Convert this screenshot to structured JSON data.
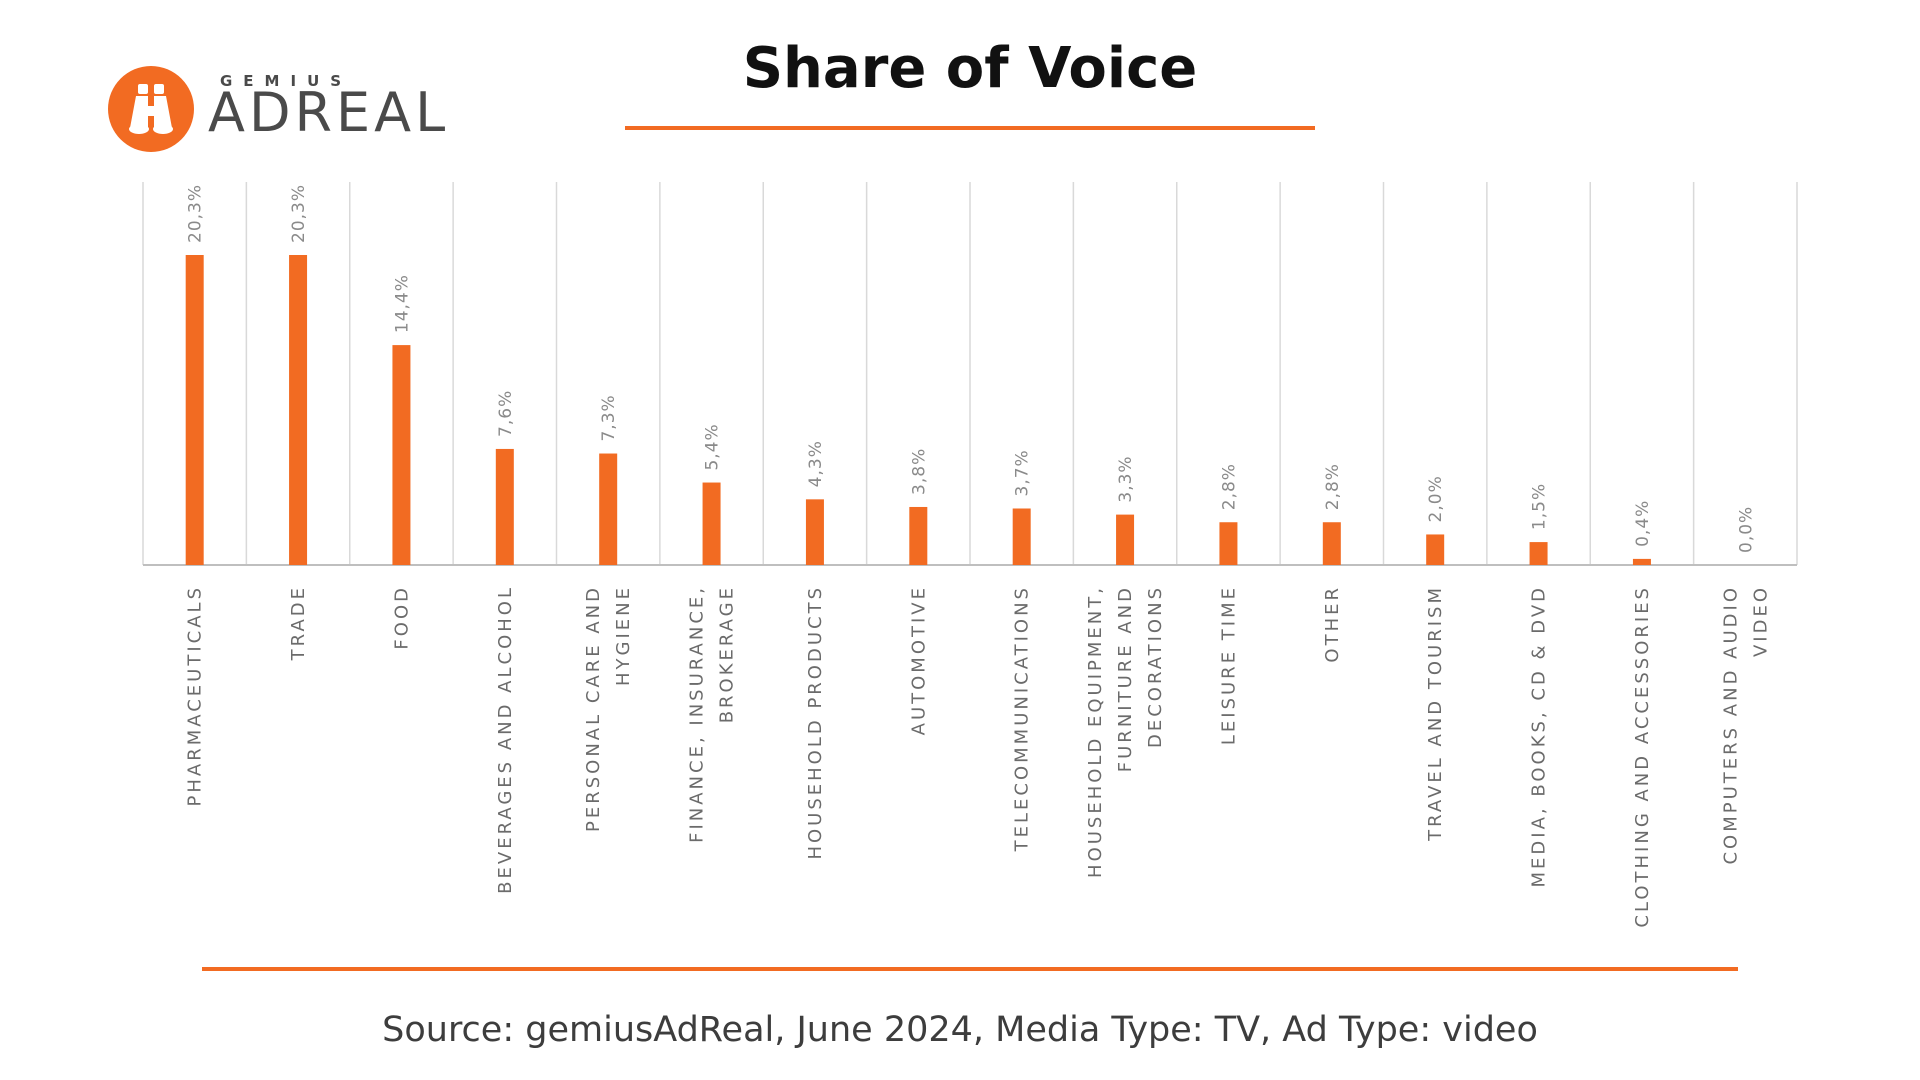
{
  "logo": {
    "small_text": "GEMIUS",
    "big_text": "ADREAL",
    "icon": "binoculars-icon",
    "color": "#f26b22"
  },
  "title": "Share of Voice",
  "source": "Source: gemiusAdReal, June 2024, Media Type: TV, Ad Type: video",
  "colors": {
    "accent": "#f26b22",
    "grid": "#d9d9d9",
    "axis": "#bfbfbf"
  },
  "chart_data": {
    "type": "bar",
    "title": "Share of Voice",
    "xlabel": "",
    "ylabel": "",
    "ylim": [
      0,
      25
    ],
    "grid": true,
    "legend": "none",
    "categories": [
      [
        "PHARMACEUTICALS"
      ],
      [
        "TRADE"
      ],
      [
        "FOOD"
      ],
      [
        "BEVERAGES AND ALCOHOL"
      ],
      [
        "PERSONAL CARE AND",
        "HYGIENE"
      ],
      [
        "FINANCE, INSURANCE,",
        "BROKERAGE"
      ],
      [
        "HOUSEHOLD PRODUCTS"
      ],
      [
        "AUTOMOTIVE"
      ],
      [
        "TELECOMMUNICATIONS"
      ],
      [
        "HOUSEHOLD EQUIPMENT,",
        "FURNITURE AND",
        "DECORATIONS"
      ],
      [
        "LEISURE TIME"
      ],
      [
        "OTHER"
      ],
      [
        "TRAVEL AND TOURISM"
      ],
      [
        "MEDIA, BOOKS, CD & DVD"
      ],
      [
        "CLOTHING AND ACCESSORIES"
      ],
      [
        "COMPUTERS AND AUDIO",
        "VIDEO"
      ]
    ],
    "values": [
      20.3,
      20.3,
      14.4,
      7.6,
      7.3,
      5.4,
      4.3,
      3.8,
      3.7,
      3.3,
      2.8,
      2.8,
      2.0,
      1.5,
      0.4,
      0.0
    ],
    "data_labels": [
      "20,3%",
      "20,3%",
      "14,4%",
      "7,6%",
      "7,3%",
      "5,4%",
      "4,3%",
      "3,8%",
      "3,7%",
      "3,3%",
      "2,8%",
      "2,8%",
      "2,0%",
      "1,5%",
      "0,4%",
      "0,0%"
    ]
  }
}
